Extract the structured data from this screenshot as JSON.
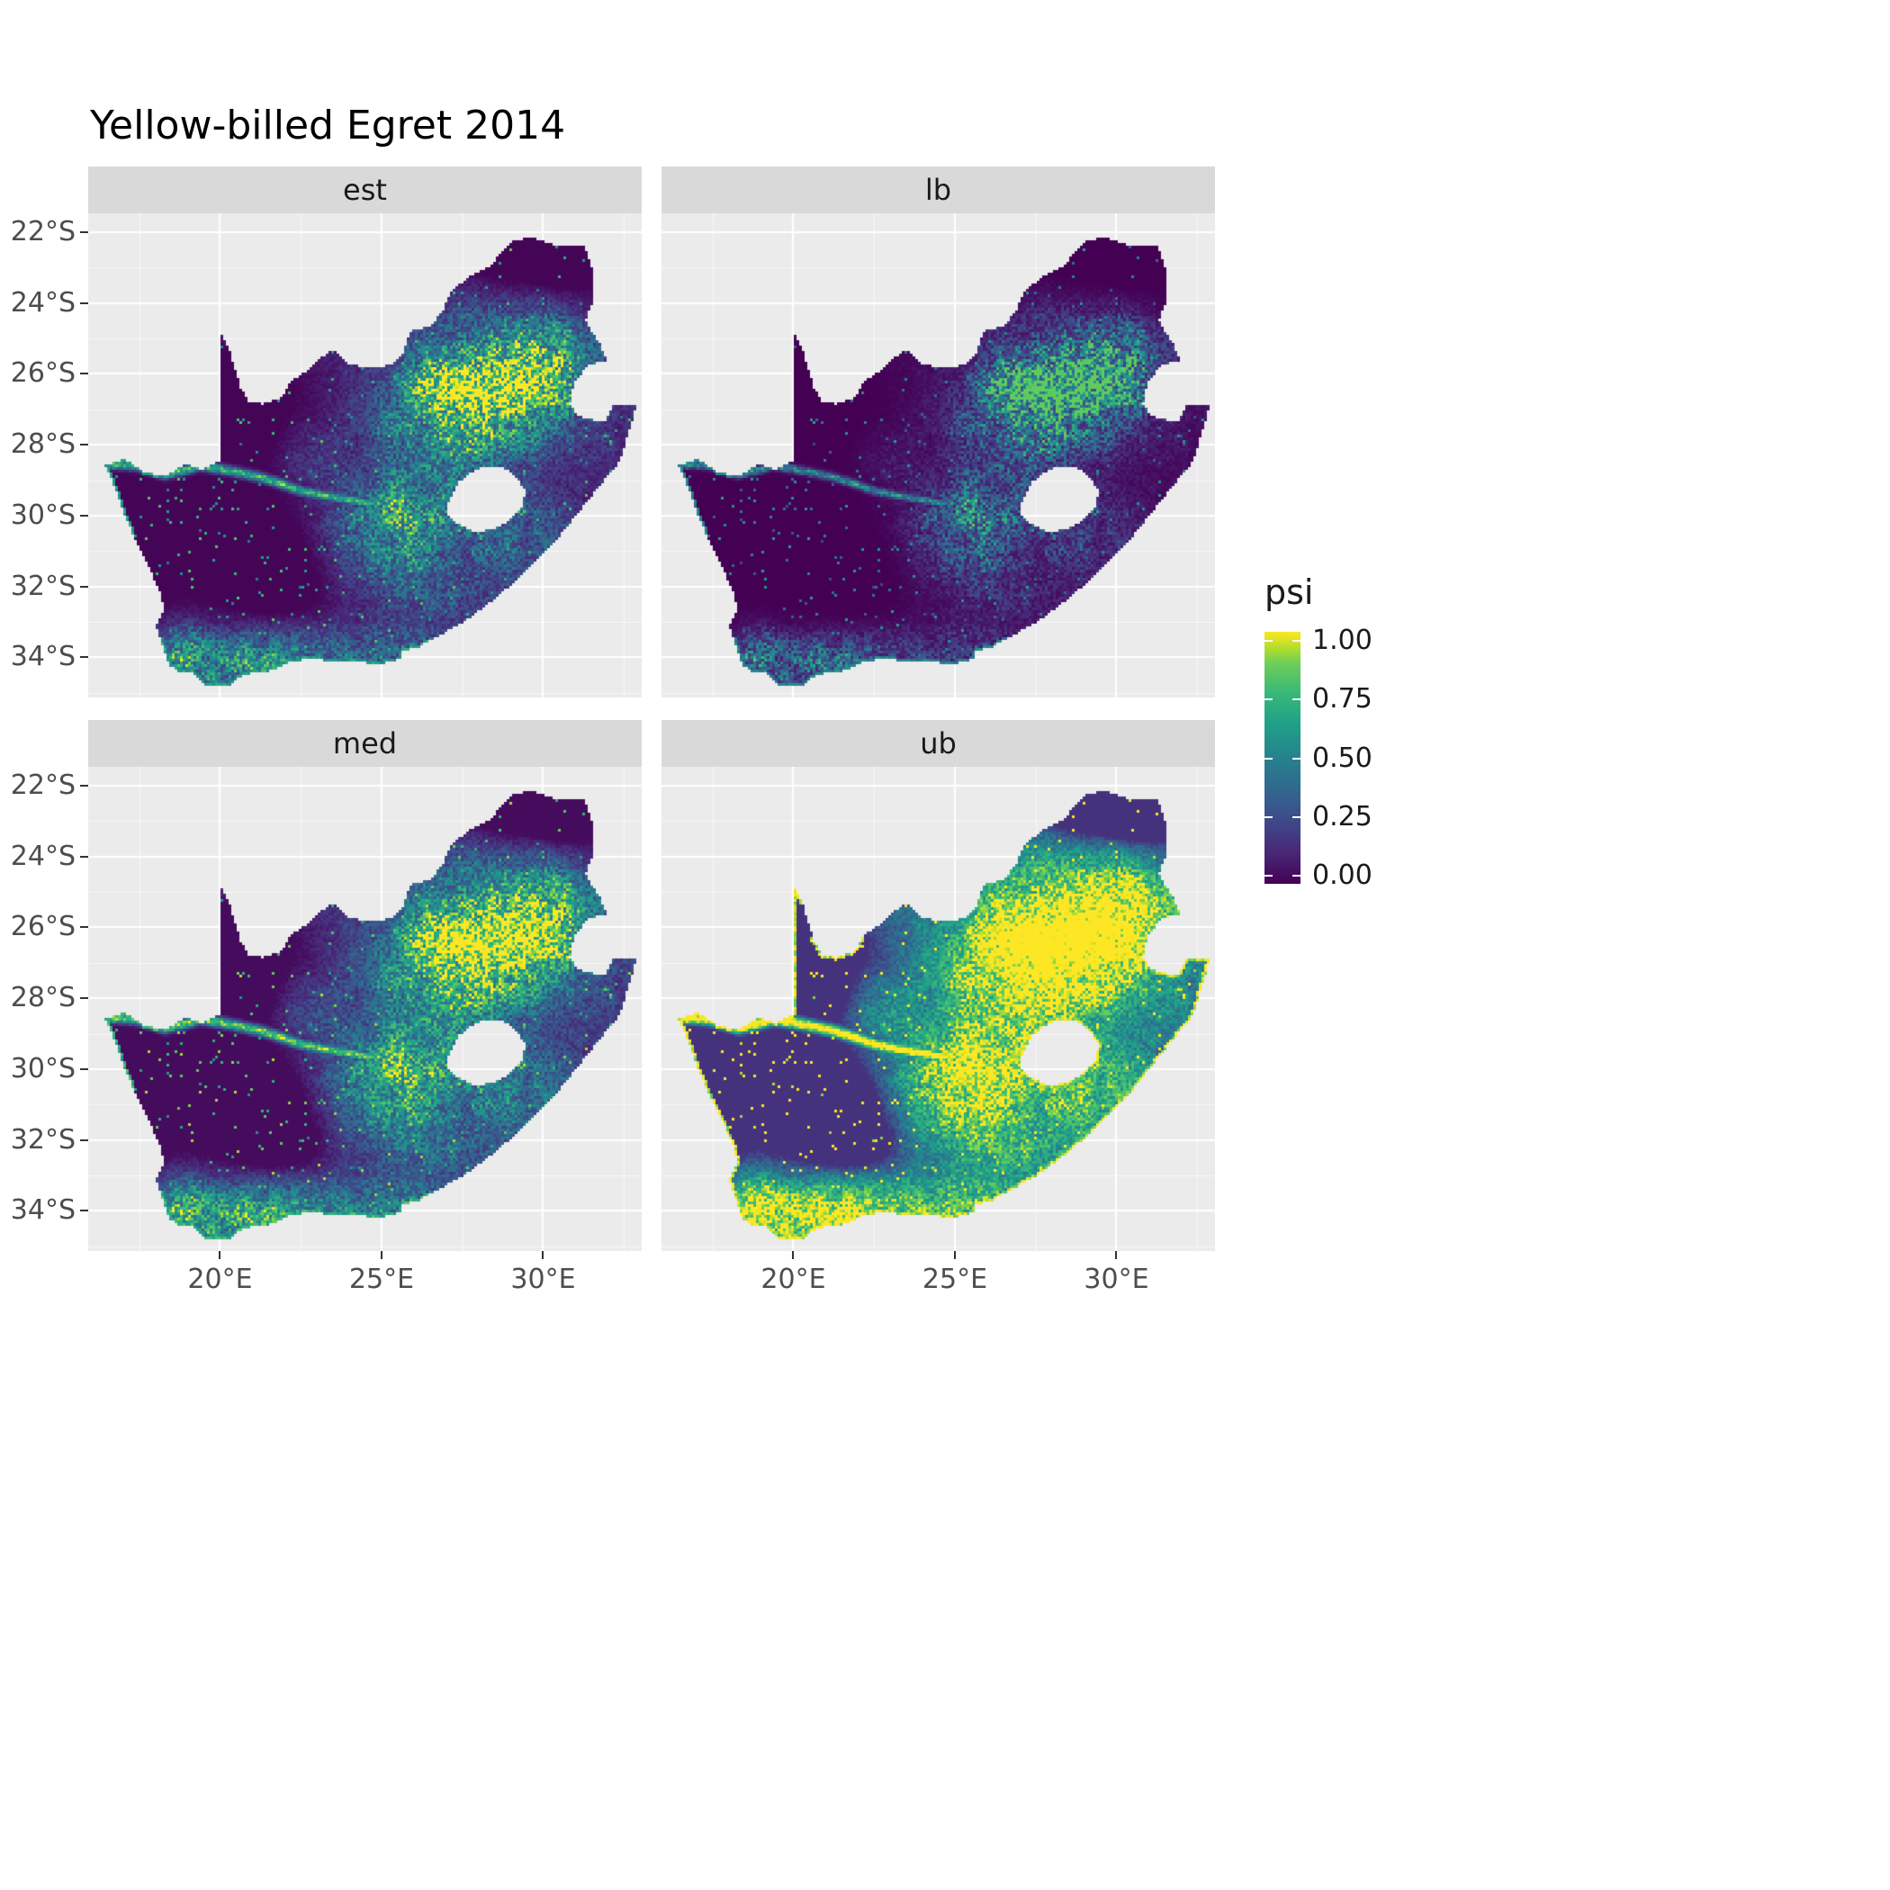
{
  "title": "Yellow-billed Egret 2014",
  "style": {
    "page_bg": "#ffffff",
    "panel_bg": "#ebebeb",
    "strip_bg": "#d9d9d9",
    "grid_major": "#ffffff",
    "tick_color": "#333333",
    "axis_text": "#4d4d4d",
    "text": "#1a1a1a"
  },
  "chart_data": {
    "type": "heatmap",
    "subtype": "faceted_raster_occupancy_map",
    "region": "South Africa",
    "title": "Yellow-billed Egret 2014",
    "facets": [
      "est",
      "lb",
      "med",
      "ub"
    ],
    "x_axis": {
      "label": "",
      "range": [
        15.92,
        33.05
      ],
      "ticks": [
        {
          "value": 20,
          "label": "20°E"
        },
        {
          "value": 25,
          "label": "25°E"
        },
        {
          "value": 30,
          "label": "30°E"
        }
      ]
    },
    "y_axis": {
      "label": "",
      "range": [
        -35.13,
        -21.47
      ],
      "ticks": [
        {
          "value": -22,
          "label": "22°S"
        },
        {
          "value": -24,
          "label": "24°S"
        },
        {
          "value": -26,
          "label": "26°S"
        },
        {
          "value": -28,
          "label": "28°S"
        },
        {
          "value": -30,
          "label": "30°S"
        },
        {
          "value": -32,
          "label": "32°S"
        },
        {
          "value": -34,
          "label": "34°S"
        }
      ]
    },
    "legend": {
      "title": "psi",
      "range": [
        0,
        1
      ],
      "ticks": [
        {
          "value": 1.0,
          "label": "1.00"
        },
        {
          "value": 0.75,
          "label": "0.75"
        },
        {
          "value": 0.5,
          "label": "0.50"
        },
        {
          "value": 0.25,
          "label": "0.25"
        },
        {
          "value": 0.0,
          "label": "0.00"
        }
      ]
    },
    "colormap": {
      "name": "viridis",
      "stops": [
        [
          0.0,
          "#440154"
        ],
        [
          0.125,
          "#482878"
        ],
        [
          0.25,
          "#3e4a89"
        ],
        [
          0.375,
          "#31688e"
        ],
        [
          0.5,
          "#26828e"
        ],
        [
          0.625,
          "#1f9e89"
        ],
        [
          0.75,
          "#35b779"
        ],
        [
          0.875,
          "#6ece58"
        ],
        [
          0.9375,
          "#b5de2b"
        ],
        [
          1.0,
          "#fde725"
        ]
      ]
    },
    "facet_transforms": {
      "est": {
        "gamma": 1.05,
        "gain": 1.0,
        "edge_all": 0,
        "edge_sw": 0.62
      },
      "lb": {
        "gamma": 1.6,
        "gain": 0.85,
        "edge_all": 0,
        "edge_sw": 0.5
      },
      "med": {
        "gamma": 0.85,
        "gain": 1.08,
        "edge_all": 0,
        "edge_sw": 0.72
      },
      "ub": {
        "gamma": 0.5,
        "gain": 1.32,
        "edge_all": 0.97,
        "edge_sw": 0.97
      }
    },
    "pattern": {
      "base_level": 0.16,
      "hotspots": [
        [
          28.7,
          -26.25,
          2.5,
          1.5,
          0.95
        ],
        [
          27.0,
          -27.3,
          2.2,
          1.4,
          0.45
        ],
        [
          26.3,
          -29.8,
          2.1,
          1.3,
          0.5
        ],
        [
          24.6,
          -30.6,
          1.7,
          1.2,
          0.32
        ],
        [
          20.7,
          -34.2,
          1.9,
          0.9,
          0.5
        ],
        [
          18.85,
          -33.8,
          0.8,
          0.7,
          0.45
        ],
        [
          29.6,
          -30.6,
          1.6,
          1.1,
          0.3
        ],
        [
          24.0,
          -33.9,
          3.2,
          0.8,
          0.28
        ],
        [
          26.0,
          -32.0,
          2.5,
          1.3,
          0.22
        ],
        [
          30.0,
          -24.7,
          1.5,
          1.2,
          0.25
        ],
        [
          22.5,
          -28.3,
          1.5,
          1.2,
          0.2
        ],
        [
          20.0,
          -27.6,
          3.0,
          2.3,
          -0.38
        ],
        [
          21.8,
          -31.6,
          3.0,
          1.9,
          -0.28
        ],
        [
          30.6,
          -23.3,
          1.8,
          1.3,
          -0.22
        ],
        [
          17.6,
          -30.8,
          1.3,
          2.0,
          -0.22
        ],
        [
          29.0,
          -22.7,
          2.5,
          0.8,
          -0.2
        ]
      ],
      "rivers": [
        {
          "w": 0.13,
          "amp": 0.8,
          "pts": [
            [
              16.6,
              -28.55
            ],
            [
              17.4,
              -28.6
            ],
            [
              18.3,
              -28.85
            ],
            [
              19.4,
              -28.6
            ],
            [
              20.4,
              -28.75
            ],
            [
              21.4,
              -28.95
            ],
            [
              22.5,
              -29.3
            ],
            [
              23.6,
              -29.5
            ],
            [
              24.6,
              -29.65
            ]
          ]
        },
        {
          "w": 0.11,
          "amp": 0.65,
          "pts": [
            [
              24.6,
              -29.65
            ],
            [
              25.5,
              -29.15
            ],
            [
              26.4,
              -28.5
            ],
            [
              27.2,
              -27.75
            ],
            [
              28.1,
              -27.15
            ],
            [
              29.0,
              -26.75
            ]
          ]
        }
      ]
    },
    "geography": {
      "grid_cell_deg": 0.0833,
      "boundary": [
        [
          16.45,
          -28.58
        ],
        [
          17.05,
          -28.4
        ],
        [
          17.6,
          -28.75
        ],
        [
          18.25,
          -28.9
        ],
        [
          18.95,
          -28.55
        ],
        [
          19.45,
          -28.7
        ],
        [
          19.99,
          -28.45
        ],
        [
          19.99,
          -24.77
        ],
        [
          20.3,
          -25.35
        ],
        [
          20.5,
          -25.95
        ],
        [
          20.63,
          -26.4
        ],
        [
          20.9,
          -26.78
        ],
        [
          21.35,
          -26.85
        ],
        [
          21.9,
          -26.67
        ],
        [
          22.2,
          -26.2
        ],
        [
          22.65,
          -25.95
        ],
        [
          23.0,
          -25.62
        ],
        [
          23.5,
          -25.32
        ],
        [
          24.0,
          -25.75
        ],
        [
          24.75,
          -25.82
        ],
        [
          25.35,
          -25.75
        ],
        [
          25.62,
          -25.48
        ],
        [
          25.92,
          -24.78
        ],
        [
          26.5,
          -24.65
        ],
        [
          26.87,
          -24.27
        ],
        [
          27.15,
          -23.65
        ],
        [
          27.75,
          -23.25
        ],
        [
          28.35,
          -22.95
        ],
        [
          29.05,
          -22.25
        ],
        [
          29.67,
          -22.15
        ],
        [
          30.3,
          -22.35
        ],
        [
          31.3,
          -22.4
        ],
        [
          31.57,
          -23.2
        ],
        [
          31.55,
          -23.95
        ],
        [
          31.3,
          -24.5
        ],
        [
          31.75,
          -25.15
        ],
        [
          32.0,
          -25.65
        ],
        [
          31.4,
          -25.73
        ],
        [
          30.97,
          -26.25
        ],
        [
          30.82,
          -26.85
        ],
        [
          31.1,
          -27.2
        ],
        [
          31.6,
          -27.32
        ],
        [
          31.96,
          -27.3
        ],
        [
          32.15,
          -26.85
        ],
        [
          32.9,
          -26.85
        ],
        [
          32.55,
          -27.95
        ],
        [
          32.35,
          -28.5
        ],
        [
          31.8,
          -29.1
        ],
        [
          31.05,
          -29.95
        ],
        [
          30.45,
          -30.65
        ],
        [
          29.85,
          -31.2
        ],
        [
          29.15,
          -31.85
        ],
        [
          28.35,
          -32.45
        ],
        [
          27.55,
          -33.0
        ],
        [
          26.75,
          -33.4
        ],
        [
          26.05,
          -33.75
        ],
        [
          25.65,
          -33.8
        ],
        [
          25.6,
          -34.05
        ],
        [
          24.85,
          -34.2
        ],
        [
          24.15,
          -34.1
        ],
        [
          23.35,
          -34.1
        ],
        [
          22.85,
          -34.0
        ],
        [
          22.15,
          -34.15
        ],
        [
          21.45,
          -34.42
        ],
        [
          20.75,
          -34.47
        ],
        [
          20.25,
          -34.8
        ],
        [
          19.55,
          -34.8
        ],
        [
          19.1,
          -34.38
        ],
        [
          18.75,
          -34.4
        ],
        [
          18.45,
          -34.25
        ],
        [
          18.3,
          -33.9
        ],
        [
          18.0,
          -33.1
        ],
        [
          18.27,
          -32.65
        ],
        [
          18.1,
          -32.05
        ],
        [
          17.55,
          -31.0
        ],
        [
          17.05,
          -30.0
        ],
        [
          16.75,
          -29.2
        ]
      ],
      "lesotho_hole": [
        [
          27.05,
          -29.65
        ],
        [
          27.35,
          -29.1
        ],
        [
          27.6,
          -28.88
        ],
        [
          28.15,
          -28.6
        ],
        [
          28.72,
          -28.6
        ],
        [
          29.15,
          -28.92
        ],
        [
          29.45,
          -29.3
        ],
        [
          29.33,
          -29.78
        ],
        [
          28.95,
          -30.15
        ],
        [
          28.4,
          -30.4
        ],
        [
          27.83,
          -30.45
        ],
        [
          27.32,
          -30.2
        ],
        [
          27.0,
          -29.95
        ]
      ]
    }
  }
}
